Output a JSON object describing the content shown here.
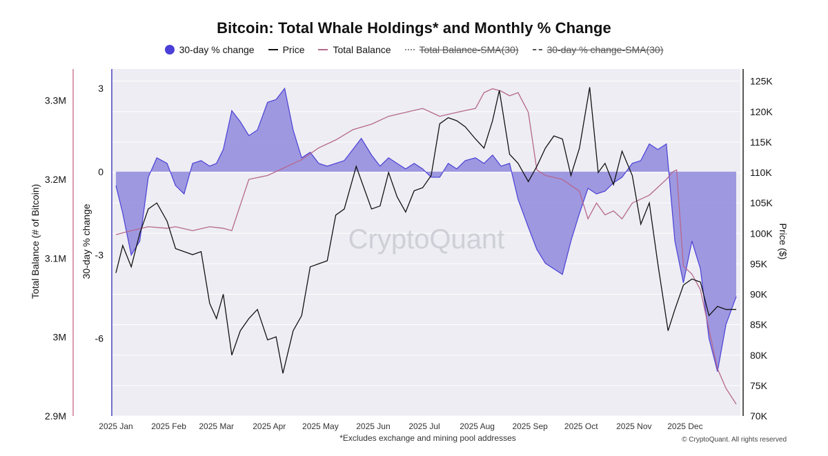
{
  "title": "Bitcoin: Total Whale Holdings* and Monthly % Change",
  "footnote": "*Excludes exchange and mining pool addresses",
  "copyright": "© CryptoQuant. All rights reserved",
  "watermark": "CryptoQuant",
  "legend": [
    {
      "label": "30-day % change",
      "kind": "dot",
      "color": "#4a3fd6",
      "struck": false
    },
    {
      "label": "Price",
      "kind": "line",
      "color": "#111111",
      "struck": false
    },
    {
      "label": "Total Balance",
      "kind": "line",
      "color": "#b5678c",
      "struck": false
    },
    {
      "label": "Total Balance-SMA(30)",
      "kind": "dotted",
      "color": "#888888",
      "struck": true
    },
    {
      "label": "30-day % change-SMA(30)",
      "kind": "dashed",
      "color": "#555555",
      "struck": true
    }
  ],
  "colors": {
    "plot_bg": "#ededf3",
    "pct_fill": "#8f88dc",
    "pct_line": "#4a3fd6",
    "price": "#111111",
    "balance": "#b5678c",
    "left_axis_line": "#c05a7a",
    "pct_axis_line": "#3a35b8"
  },
  "chart_data": {
    "type": "line",
    "xlim": [
      "2025-01-01",
      "2025-12-31"
    ],
    "x_ticks": [
      "2025 Jan",
      "2025 Feb",
      "2025 Mar",
      "2025 Apr",
      "2025 May",
      "2025 Jun",
      "2025 Jul",
      "2025 Aug",
      "2025 Sep",
      "2025 Oct",
      "2025 Nov",
      "2025 Dec"
    ],
    "y_axes": {
      "balance": {
        "label": "Total Balance (# of Bitcoin)",
        "ticks": [
          "3.3M",
          "3.2M",
          "3.1M",
          "3M",
          "2.9M"
        ],
        "range": [
          2900000,
          3340000
        ]
      },
      "pct": {
        "label": "30-day % change",
        "ticks": [
          "3",
          "0",
          "-3",
          "-6"
        ],
        "range": [
          -8.8,
          3.7
        ]
      },
      "price": {
        "label": "Price ($)",
        "ticks": [
          "125K",
          "120K",
          "115K",
          "110K",
          "105K",
          "100K",
          "95K",
          "90K",
          "85K",
          "80K",
          "75K",
          "70K"
        ],
        "range": [
          70000,
          127000
        ]
      }
    },
    "series": [
      {
        "name": "30-day % change",
        "type": "area",
        "axis": "pct",
        "x": [
          "2025-01-01",
          "2025-01-05",
          "2025-01-10",
          "2025-01-15",
          "2025-01-20",
          "2025-01-25",
          "2025-01-31",
          "2025-02-05",
          "2025-02-10",
          "2025-02-15",
          "2025-02-20",
          "2025-02-25",
          "2025-03-01",
          "2025-03-05",
          "2025-03-10",
          "2025-03-15",
          "2025-03-20",
          "2025-03-25",
          "2025-03-31",
          "2025-04-05",
          "2025-04-10",
          "2025-04-15",
          "2025-04-20",
          "2025-04-25",
          "2025-04-30",
          "2025-05-05",
          "2025-05-10",
          "2025-05-15",
          "2025-05-20",
          "2025-05-25",
          "2025-05-31",
          "2025-06-05",
          "2025-06-10",
          "2025-06-15",
          "2025-06-20",
          "2025-06-25",
          "2025-06-30",
          "2025-07-05",
          "2025-07-10",
          "2025-07-15",
          "2025-07-20",
          "2025-07-25",
          "2025-07-31",
          "2025-08-05",
          "2025-08-10",
          "2025-08-15",
          "2025-08-20",
          "2025-08-25",
          "2025-08-31",
          "2025-09-05",
          "2025-09-10",
          "2025-09-15",
          "2025-09-20",
          "2025-09-25",
          "2025-09-30",
          "2025-10-05",
          "2025-10-10",
          "2025-10-15",
          "2025-10-20",
          "2025-10-25",
          "2025-10-31",
          "2025-11-05",
          "2025-11-10",
          "2025-11-15",
          "2025-11-20",
          "2025-11-25",
          "2025-11-30",
          "2025-12-05",
          "2025-12-10",
          "2025-12-15",
          "2025-12-20",
          "2025-12-25",
          "2025-12-31"
        ],
        "values": [
          -0.5,
          -1.5,
          -3.0,
          -2.5,
          -0.2,
          0.5,
          0.3,
          -0.5,
          -0.8,
          0.3,
          0.4,
          0.2,
          0.3,
          0.8,
          2.2,
          1.8,
          1.3,
          1.5,
          2.5,
          2.6,
          3.0,
          1.5,
          0.5,
          0.7,
          0.3,
          0.2,
          0.3,
          0.4,
          0.8,
          1.2,
          0.6,
          0.2,
          0.5,
          0.3,
          0.1,
          0.3,
          0.1,
          -0.2,
          -0.2,
          0.3,
          0.1,
          0.4,
          0.5,
          0.3,
          0.6,
          0.2,
          0.3,
          -1.0,
          -2.0,
          -2.8,
          -3.3,
          -3.5,
          -3.7,
          -2.5,
          -1.5,
          -0.6,
          -0.8,
          -0.7,
          -0.4,
          -0.2,
          0.3,
          0.4,
          1.0,
          0.8,
          1.0,
          -2.5,
          -4.0,
          -2.5,
          -3.5,
          -6.0,
          -7.2,
          -5.5,
          -4.5
        ]
      },
      {
        "name": "Price",
        "type": "line",
        "axis": "price",
        "x": [
          "2025-01-01",
          "2025-01-05",
          "2025-01-10",
          "2025-01-15",
          "2025-01-20",
          "2025-01-25",
          "2025-01-31",
          "2025-02-05",
          "2025-02-10",
          "2025-02-15",
          "2025-02-20",
          "2025-02-25",
          "2025-03-01",
          "2025-03-05",
          "2025-03-10",
          "2025-03-15",
          "2025-03-20",
          "2025-03-25",
          "2025-03-31",
          "2025-04-05",
          "2025-04-09",
          "2025-04-15",
          "2025-04-20",
          "2025-04-25",
          "2025-04-30",
          "2025-05-05",
          "2025-05-10",
          "2025-05-15",
          "2025-05-22",
          "2025-05-31",
          "2025-06-05",
          "2025-06-10",
          "2025-06-15",
          "2025-06-20",
          "2025-06-25",
          "2025-06-30",
          "2025-07-05",
          "2025-07-10",
          "2025-07-15",
          "2025-07-20",
          "2025-07-25",
          "2025-07-31",
          "2025-08-05",
          "2025-08-10",
          "2025-08-14",
          "2025-08-20",
          "2025-08-25",
          "2025-08-31",
          "2025-09-05",
          "2025-09-10",
          "2025-09-15",
          "2025-09-20",
          "2025-09-25",
          "2025-09-30",
          "2025-10-06",
          "2025-10-11",
          "2025-10-15",
          "2025-10-20",
          "2025-10-25",
          "2025-10-31",
          "2025-11-05",
          "2025-11-10",
          "2025-11-15",
          "2025-11-21",
          "2025-11-25",
          "2025-11-30",
          "2025-12-05",
          "2025-12-10",
          "2025-12-15",
          "2025-12-20",
          "2025-12-25",
          "2025-12-31"
        ],
        "values": [
          93500,
          98000,
          94500,
          100000,
          104000,
          105000,
          102000,
          97500,
          97000,
          96500,
          97000,
          88500,
          86000,
          90000,
          80000,
          84000,
          86000,
          87500,
          82500,
          83000,
          77000,
          84000,
          86500,
          94500,
          95000,
          95500,
          103000,
          104000,
          111000,
          104000,
          104500,
          110000,
          106000,
          103500,
          107000,
          107500,
          109500,
          118000,
          119000,
          118500,
          117500,
          115500,
          114000,
          118500,
          123500,
          113000,
          111500,
          108500,
          111000,
          114000,
          116000,
          115500,
          109500,
          114000,
          124000,
          110000,
          111500,
          108000,
          113500,
          109500,
          101500,
          105000,
          95000,
          84000,
          87500,
          91500,
          92500,
          92000,
          86500,
          88000,
          87500,
          87500
        ]
      },
      {
        "name": "Total Balance",
        "type": "line",
        "axis": "balance",
        "x": [
          "2025-01-01",
          "2025-01-10",
          "2025-01-20",
          "2025-01-31",
          "2025-02-05",
          "2025-02-15",
          "2025-02-25",
          "2025-03-05",
          "2025-03-10",
          "2025-03-20",
          "2025-03-31",
          "2025-04-10",
          "2025-04-20",
          "2025-04-30",
          "2025-05-10",
          "2025-05-20",
          "2025-05-31",
          "2025-06-10",
          "2025-06-20",
          "2025-06-30",
          "2025-07-10",
          "2025-07-20",
          "2025-07-31",
          "2025-08-05",
          "2025-08-10",
          "2025-08-15",
          "2025-08-20",
          "2025-08-25",
          "2025-08-31",
          "2025-09-05",
          "2025-09-10",
          "2025-09-20",
          "2025-09-30",
          "2025-10-05",
          "2025-10-10",
          "2025-10-15",
          "2025-10-20",
          "2025-10-25",
          "2025-10-31",
          "2025-11-10",
          "2025-11-20",
          "2025-11-24",
          "2025-11-26",
          "2025-11-30",
          "2025-12-05",
          "2025-12-10",
          "2025-12-15",
          "2025-12-20",
          "2025-12-25",
          "2025-12-31"
        ],
        "values": [
          3130000,
          3135000,
          3140000,
          3138000,
          3140000,
          3135000,
          3140000,
          3138000,
          3135000,
          3200000,
          3205000,
          3215000,
          3225000,
          3240000,
          3250000,
          3263000,
          3270000,
          3280000,
          3285000,
          3290000,
          3280000,
          3285000,
          3290000,
          3310000,
          3315000,
          3312000,
          3306000,
          3310000,
          3285000,
          3212000,
          3205000,
          3200000,
          3185000,
          3150000,
          3170000,
          3155000,
          3160000,
          3150000,
          3170000,
          3180000,
          3200000,
          3210000,
          3212000,
          3090000,
          3080000,
          3060000,
          3010000,
          2960000,
          2935000,
          2915000
        ]
      }
    ]
  }
}
